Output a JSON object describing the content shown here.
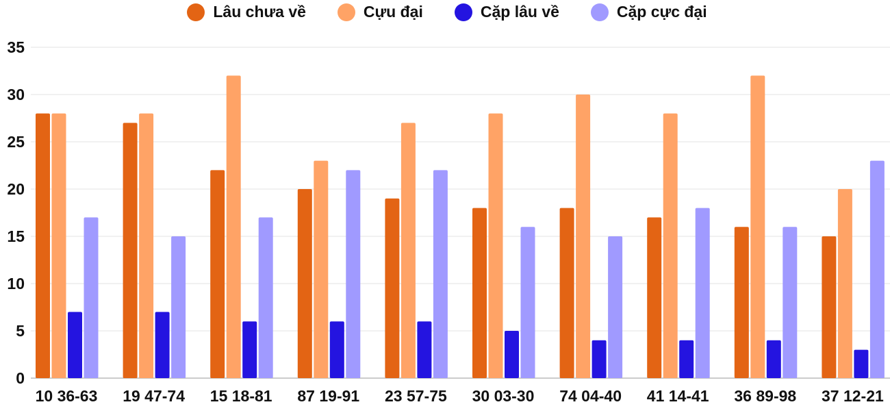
{
  "chart_data": {
    "type": "bar",
    "title": "",
    "xlabel": "",
    "ylabel": "",
    "ylim": [
      0,
      35
    ],
    "yticks": [
      0,
      5,
      10,
      15,
      20,
      25,
      30,
      35
    ],
    "grid": true,
    "legend_position": "top",
    "categories": [
      "10 36-63",
      "19 47-74",
      "15 18-81",
      "87 19-91",
      "23 57-75",
      "30 03-30",
      "74 04-40",
      "41 14-41",
      "36 89-98",
      "37 12-21"
    ],
    "series": [
      {
        "name": "Lâu chưa về",
        "color": "#e36414",
        "values": [
          28,
          27,
          22,
          20,
          19,
          18,
          18,
          17,
          16,
          15
        ]
      },
      {
        "name": "Cựu đại",
        "color": "#ffa366",
        "values": [
          28,
          28,
          32,
          23,
          27,
          28,
          30,
          28,
          32,
          20
        ]
      },
      {
        "name": "Cặp lâu về",
        "color": "#2414e0",
        "values": [
          7,
          7,
          6,
          6,
          6,
          5,
          4,
          4,
          4,
          3
        ]
      },
      {
        "name": "Cặp cực đại",
        "color": "#a09aff",
        "values": [
          17,
          15,
          17,
          22,
          22,
          16,
          15,
          18,
          16,
          23
        ]
      }
    ]
  }
}
